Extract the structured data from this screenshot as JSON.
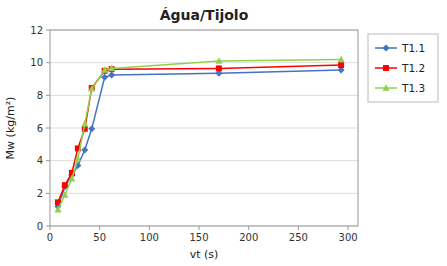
{
  "chart_data": {
    "type": "line",
    "title": "Água/Tijolo",
    "xlabel": "vt (s)",
    "ylabel": "Mw (kg/m²)",
    "x": [
      8,
      15,
      22,
      28,
      35,
      42,
      55,
      62,
      170,
      293
    ],
    "series": [
      {
        "name": "T1.1",
        "color": "#4472C4",
        "marker": "diamond",
        "values": [
          1.2,
          2.4,
          3.1,
          3.7,
          4.65,
          5.95,
          9.1,
          9.25,
          9.35,
          9.55
        ]
      },
      {
        "name": "T1.2",
        "color": "#FF0000",
        "marker": "square",
        "values": [
          1.45,
          2.5,
          3.25,
          4.75,
          5.95,
          8.45,
          9.5,
          9.6,
          9.65,
          9.85
        ]
      },
      {
        "name": "T1.3",
        "color": "#92D050",
        "marker": "triangle",
        "values": [
          1.0,
          1.9,
          2.9,
          4.1,
          6.25,
          8.4,
          9.55,
          9.65,
          10.1,
          10.2
        ]
      }
    ],
    "xlim": [
      0,
      310
    ],
    "xticks": [
      0,
      50,
      100,
      150,
      200,
      250,
      300
    ],
    "ylim": [
      0,
      12
    ],
    "yticks": [
      0,
      2,
      4,
      6,
      8,
      10,
      12
    ],
    "grid": true,
    "legend": "right"
  }
}
